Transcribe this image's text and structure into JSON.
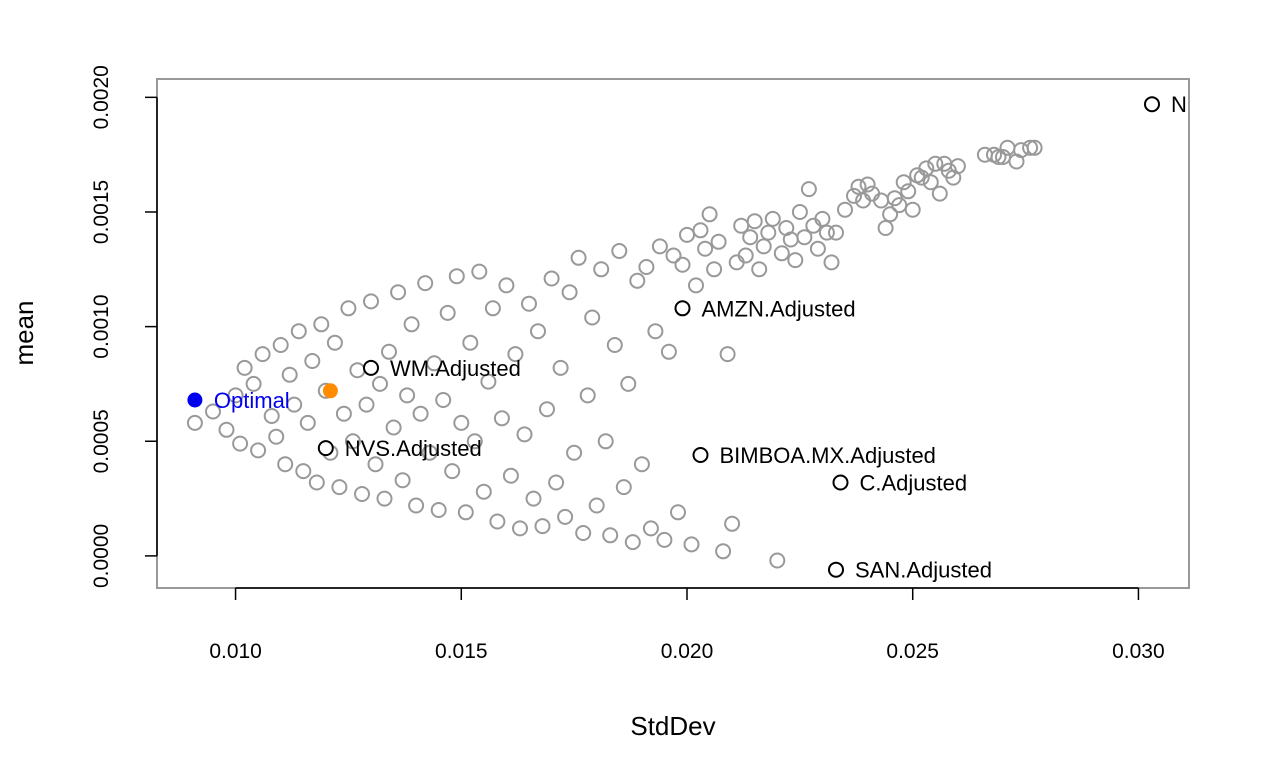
{
  "chart_data": {
    "type": "scatter",
    "title": "",
    "xlabel": "StdDev",
    "ylabel": "mean",
    "xlim": [
      0.00826,
      0.03112
    ],
    "ylim": [
      -0.00014,
      0.00208
    ],
    "grid": false,
    "x_ticks": [
      0.01,
      0.015,
      0.02,
      0.025,
      0.03
    ],
    "x_tick_labels": [
      "0.010",
      "0.015",
      "0.020",
      "0.025",
      "0.030"
    ],
    "y_ticks": [
      0.0,
      0.0005,
      0.001,
      0.0015,
      0.002
    ],
    "y_tick_labels": [
      "0.0000",
      "0.0005",
      "0.0010",
      "0.0015",
      "0.0020"
    ],
    "colors": {
      "portfolios": "#999999",
      "assets": "#000000",
      "optimal": "#0000ee",
      "highlight": "#ff8c00",
      "frame": "#999999"
    },
    "random_portfolios": {
      "series_name": "",
      "count_approx": 2000,
      "points": [
        [
          0.0091,
          0.00058
        ],
        [
          0.0095,
          0.00063
        ],
        [
          0.0098,
          0.00055
        ],
        [
          0.01,
          0.0007
        ],
        [
          0.0101,
          0.00049
        ],
        [
          0.0102,
          0.00082
        ],
        [
          0.0104,
          0.00075
        ],
        [
          0.0105,
          0.00046
        ],
        [
          0.0106,
          0.00088
        ],
        [
          0.0108,
          0.00061
        ],
        [
          0.0109,
          0.00052
        ],
        [
          0.011,
          0.00092
        ],
        [
          0.0111,
          0.0004
        ],
        [
          0.0112,
          0.00079
        ],
        [
          0.0113,
          0.00066
        ],
        [
          0.0114,
          0.00098
        ],
        [
          0.0115,
          0.00037
        ],
        [
          0.0116,
          0.00058
        ],
        [
          0.0117,
          0.00085
        ],
        [
          0.0118,
          0.00032
        ],
        [
          0.0119,
          0.00101
        ],
        [
          0.012,
          0.00072
        ],
        [
          0.0121,
          0.00045
        ],
        [
          0.0122,
          0.00093
        ],
        [
          0.0123,
          0.0003
        ],
        [
          0.0124,
          0.00062
        ],
        [
          0.0125,
          0.00108
        ],
        [
          0.0126,
          0.0005
        ],
        [
          0.0127,
          0.00081
        ],
        [
          0.0128,
          0.00027
        ],
        [
          0.0129,
          0.00066
        ],
        [
          0.013,
          0.00111
        ],
        [
          0.0131,
          0.0004
        ],
        [
          0.0132,
          0.00075
        ],
        [
          0.0133,
          0.00025
        ],
        [
          0.0134,
          0.00089
        ],
        [
          0.0135,
          0.00056
        ],
        [
          0.0136,
          0.00115
        ],
        [
          0.0137,
          0.00033
        ],
        [
          0.0138,
          0.0007
        ],
        [
          0.0139,
          0.00101
        ],
        [
          0.014,
          0.00022
        ],
        [
          0.0141,
          0.00062
        ],
        [
          0.0142,
          0.00119
        ],
        [
          0.0143,
          0.00045
        ],
        [
          0.0144,
          0.00084
        ],
        [
          0.0145,
          0.0002
        ],
        [
          0.0146,
          0.00068
        ],
        [
          0.0147,
          0.00106
        ],
        [
          0.0148,
          0.00037
        ],
        [
          0.0149,
          0.00122
        ],
        [
          0.015,
          0.00058
        ],
        [
          0.0151,
          0.00019
        ],
        [
          0.0152,
          0.00093
        ],
        [
          0.0153,
          0.0005
        ],
        [
          0.0154,
          0.00124
        ],
        [
          0.0155,
          0.00028
        ],
        [
          0.0156,
          0.00076
        ],
        [
          0.0157,
          0.00108
        ],
        [
          0.0158,
          0.00015
        ],
        [
          0.0159,
          0.0006
        ],
        [
          0.016,
          0.00118
        ],
        [
          0.0161,
          0.00035
        ],
        [
          0.0162,
          0.00088
        ],
        [
          0.0163,
          0.00012
        ],
        [
          0.0164,
          0.00053
        ],
        [
          0.0165,
          0.0011
        ],
        [
          0.0166,
          0.00025
        ],
        [
          0.0167,
          0.00098
        ],
        [
          0.0168,
          0.00013
        ],
        [
          0.0169,
          0.00064
        ],
        [
          0.017,
          0.00121
        ],
        [
          0.0171,
          0.00032
        ],
        [
          0.0172,
          0.00082
        ],
        [
          0.0173,
          0.00017
        ],
        [
          0.0174,
          0.00115
        ],
        [
          0.0175,
          0.00045
        ],
        [
          0.0176,
          0.0013
        ],
        [
          0.0177,
          0.0001
        ],
        [
          0.0178,
          0.0007
        ],
        [
          0.0179,
          0.00104
        ],
        [
          0.018,
          0.00022
        ],
        [
          0.0181,
          0.00125
        ],
        [
          0.0182,
          0.0005
        ],
        [
          0.0183,
          9e-05
        ],
        [
          0.0184,
          0.00092
        ],
        [
          0.0185,
          0.00133
        ],
        [
          0.0186,
          0.0003
        ],
        [
          0.0187,
          0.00075
        ],
        [
          0.0188,
          6e-05
        ],
        [
          0.0189,
          0.0012
        ],
        [
          0.019,
          0.0004
        ],
        [
          0.0191,
          0.00126
        ],
        [
          0.0192,
          0.00012
        ],
        [
          0.0193,
          0.00098
        ],
        [
          0.0194,
          0.00135
        ],
        [
          0.0195,
          7e-05
        ],
        [
          0.0196,
          0.00089
        ],
        [
          0.0197,
          0.00131
        ],
        [
          0.0198,
          0.00019
        ],
        [
          0.0199,
          0.00127
        ],
        [
          0.02,
          0.0014
        ],
        [
          0.0201,
          5e-05
        ],
        [
          0.0202,
          0.00118
        ],
        [
          0.0203,
          0.00142
        ],
        [
          0.0204,
          0.00134
        ],
        [
          0.0205,
          0.00149
        ],
        [
          0.0206,
          0.00125
        ],
        [
          0.0207,
          0.00137
        ],
        [
          0.0208,
          2e-05
        ],
        [
          0.0209,
          0.00088
        ],
        [
          0.021,
          0.00014
        ],
        [
          0.0211,
          0.00128
        ],
        [
          0.0212,
          0.00144
        ],
        [
          0.0213,
          0.00131
        ],
        [
          0.0214,
          0.00139
        ],
        [
          0.0215,
          0.00146
        ],
        [
          0.0216,
          0.00125
        ],
        [
          0.0217,
          0.00135
        ],
        [
          0.0218,
          0.00141
        ],
        [
          0.0219,
          0.00147
        ],
        [
          0.022,
          -2e-05
        ],
        [
          0.0221,
          0.00132
        ],
        [
          0.0222,
          0.00143
        ],
        [
          0.0223,
          0.00138
        ],
        [
          0.0224,
          0.00129
        ],
        [
          0.0225,
          0.0015
        ],
        [
          0.0226,
          0.00139
        ],
        [
          0.0227,
          0.0016
        ],
        [
          0.0228,
          0.00144
        ],
        [
          0.0229,
          0.00134
        ],
        [
          0.023,
          0.00147
        ],
        [
          0.0231,
          0.00141
        ],
        [
          0.0232,
          0.00128
        ],
        [
          0.0233,
          0.00141
        ],
        [
          0.0235,
          0.00151
        ],
        [
          0.0237,
          0.00157
        ],
        [
          0.0238,
          0.00161
        ],
        [
          0.0239,
          0.00155
        ],
        [
          0.024,
          0.00162
        ],
        [
          0.0241,
          0.00158
        ],
        [
          0.0243,
          0.00155
        ],
        [
          0.0244,
          0.00143
        ],
        [
          0.0245,
          0.00149
        ],
        [
          0.0246,
          0.00156
        ],
        [
          0.0247,
          0.00153
        ],
        [
          0.0248,
          0.00163
        ],
        [
          0.0249,
          0.00159
        ],
        [
          0.025,
          0.00151
        ],
        [
          0.0251,
          0.00166
        ],
        [
          0.0252,
          0.00165
        ],
        [
          0.0253,
          0.00169
        ],
        [
          0.0254,
          0.00163
        ],
        [
          0.0255,
          0.00171
        ],
        [
          0.0256,
          0.00158
        ],
        [
          0.0257,
          0.00171
        ],
        [
          0.0258,
          0.00168
        ],
        [
          0.0259,
          0.00165
        ],
        [
          0.026,
          0.0017
        ],
        [
          0.0266,
          0.00175
        ],
        [
          0.0268,
          0.00175
        ],
        [
          0.0269,
          0.00174
        ],
        [
          0.027,
          0.00174
        ],
        [
          0.0271,
          0.00178
        ],
        [
          0.0273,
          0.00172
        ],
        [
          0.0274,
          0.00177
        ],
        [
          0.0276,
          0.00178
        ],
        [
          0.0277,
          0.00178
        ]
      ]
    },
    "assets": [
      {
        "label": "WM.Adjusted",
        "x": 0.013,
        "y": 0.00082
      },
      {
        "label": "NVS.Adjusted",
        "x": 0.012,
        "y": 0.00047
      },
      {
        "label": "AMZN.Adjusted",
        "x": 0.0199,
        "y": 0.00108
      },
      {
        "label": "BIMBOA.MX.Adjusted",
        "x": 0.0203,
        "y": 0.00044
      },
      {
        "label": "C.Adjusted",
        "x": 0.0234,
        "y": 0.00032
      },
      {
        "label": "SAN.Adjusted",
        "x": 0.0233,
        "y": -6e-05
      },
      {
        "label": "N",
        "x": 0.0303,
        "y": 0.00197
      }
    ],
    "optimal": {
      "label": "Optimal",
      "x": 0.0091,
      "y": 0.00068
    },
    "highlight_point": {
      "label": "",
      "x": 0.0121,
      "y": 0.00072
    }
  }
}
